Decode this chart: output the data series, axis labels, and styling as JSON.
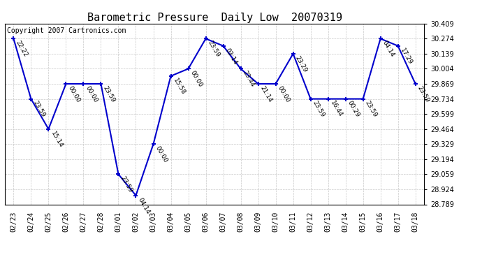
{
  "title": "Barometric Pressure  Daily Low  20070319",
  "copyright": "Copyright 2007 Cartronics.com",
  "dates": [
    "02/23",
    "02/24",
    "02/25",
    "02/26",
    "02/27",
    "02/28",
    "03/01",
    "03/02",
    "03/03",
    "03/04",
    "03/05",
    "03/06",
    "03/07",
    "03/08",
    "03/09",
    "03/10",
    "03/11",
    "03/12",
    "03/13",
    "03/14",
    "03/15",
    "03/16",
    "03/17",
    "03/18"
  ],
  "values": [
    30.274,
    29.734,
    29.464,
    29.869,
    29.869,
    29.869,
    29.059,
    28.869,
    29.329,
    29.939,
    30.004,
    30.274,
    30.209,
    30.004,
    29.869,
    29.869,
    30.139,
    29.734,
    29.734,
    29.734,
    29.734,
    30.274,
    30.209,
    29.869
  ],
  "time_labels": [
    "22:22",
    "23:59",
    "15:14",
    "00:00",
    "00:00",
    "23:59",
    "23:59",
    "04:14",
    "00:00",
    "15:58",
    "00:00",
    "23:59",
    "03:14",
    "23:44",
    "21:14",
    "00:00",
    "23:29",
    "23:59",
    "16:44",
    "00:29",
    "23:59",
    "04:14",
    "17:29",
    "23:59"
  ],
  "ylim_min": 28.789,
  "ylim_max": 30.409,
  "yticks": [
    28.789,
    28.924,
    29.059,
    29.194,
    29.329,
    29.464,
    29.599,
    29.734,
    29.869,
    30.004,
    30.139,
    30.274,
    30.409
  ],
  "line_color": "#0000cc",
  "marker_color": "#0000cc",
  "bg_color": "#ffffff",
  "plot_bg_color": "#ffffff",
  "grid_color": "#c8c8c8",
  "title_fontsize": 11,
  "tick_fontsize": 7,
  "copyright_fontsize": 7,
  "label_fontsize": 6.5
}
